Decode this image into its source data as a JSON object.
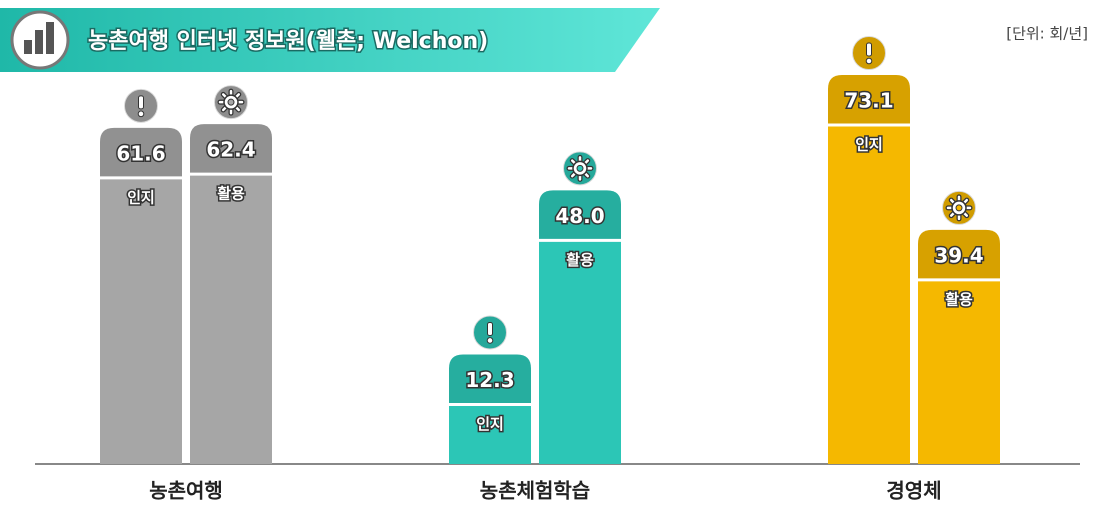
{
  "chart_data": {
    "type": "bar",
    "title": "농촌여행 인터넷 정보원(웰촌; Welchon)",
    "unit": "[단위: 회/년]",
    "categories": [
      "농촌여행",
      "농촌체험학습",
      "경영체"
    ],
    "colors": [
      "#a6a6a6",
      "#2cc6b6",
      "#f5b800"
    ],
    "series": [
      {
        "name": "인지",
        "values": [
          61.6,
          12.3,
          73.1
        ],
        "value_labels": [
          "61.6",
          "12.3",
          "73.1"
        ]
      },
      {
        "name": "활용",
        "values": [
          62.4,
          48.0,
          39.4
        ],
        "value_labels": [
          "62.4",
          "48.0",
          "39.4"
        ]
      }
    ]
  }
}
